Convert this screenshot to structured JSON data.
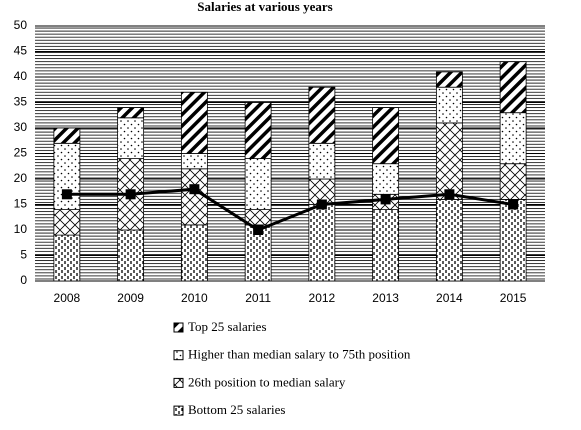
{
  "chart_data": {
    "type": "stacked-bar-line",
    "title": "Salaries at various years",
    "categories": [
      "2008",
      "2009",
      "2010",
      "2011",
      "2012",
      "2013",
      "2014",
      "2015"
    ],
    "ylim": [
      0,
      50
    ],
    "yticks": [
      0,
      5,
      10,
      15,
      20,
      25,
      30,
      35,
      40,
      45,
      50
    ],
    "grid": true,
    "series": [
      {
        "name": "Bottom 25 salaries",
        "color": "#000000",
        "pattern": "dashes",
        "values": [
          9,
          10,
          11,
          11,
          15,
          14,
          16,
          16
        ]
      },
      {
        "name": "26th position to median salary",
        "color": "#000000",
        "pattern": "crosshatch",
        "values": [
          5,
          14,
          11,
          3,
          5,
          3,
          15,
          7
        ]
      },
      {
        "name": "Higher than median salary to 75th position",
        "color": "#000000",
        "pattern": "dots",
        "values": [
          13,
          8,
          3,
          10,
          7,
          6,
          7,
          10
        ]
      },
      {
        "name": "Top 25 salaries",
        "color": "#000000",
        "pattern": "stripes",
        "values": [
          3,
          2,
          12,
          11,
          11,
          11,
          3,
          10
        ]
      }
    ],
    "line": {
      "color": "#000000",
      "values": [
        17,
        17,
        18,
        10,
        15,
        16,
        17,
        15
      ]
    }
  }
}
